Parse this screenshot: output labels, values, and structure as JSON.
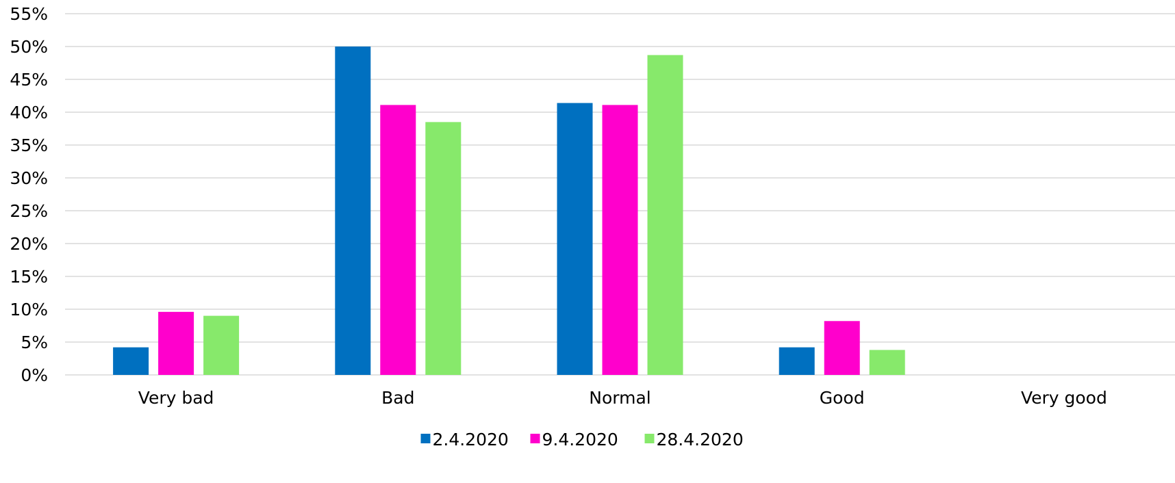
{
  "chart_data": {
    "type": "bar",
    "categories": [
      "Very bad",
      "Bad",
      "Normal",
      "Good",
      "Very good"
    ],
    "series": [
      {
        "name": "2.4.2020",
        "color": "#0070c0",
        "values": [
          4.2,
          50.0,
          41.4,
          4.2,
          0
        ]
      },
      {
        "name": "9.4.2020",
        "color": "#ff00cc",
        "values": [
          9.6,
          41.1,
          41.1,
          8.2,
          0
        ]
      },
      {
        "name": "28.4.2020",
        "color": "#87e96b",
        "values": [
          9.0,
          38.5,
          48.7,
          3.8,
          0
        ]
      }
    ],
    "ylim": [
      0,
      55
    ],
    "y_ticks": [
      "0%",
      "5%",
      "10%",
      "15%",
      "20%",
      "25%",
      "30%",
      "35%",
      "40%",
      "45%",
      "50%",
      "55%"
    ],
    "y_tick_values": [
      0,
      5,
      10,
      15,
      20,
      25,
      30,
      35,
      40,
      45,
      50,
      55
    ],
    "grid": true,
    "legend_position": "bottom"
  }
}
